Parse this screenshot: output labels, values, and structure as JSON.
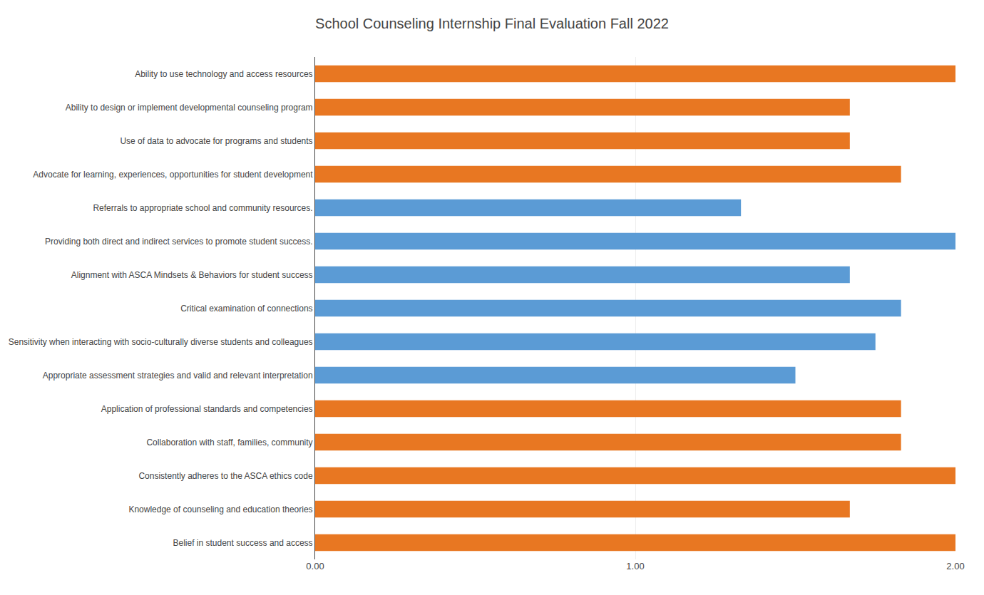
{
  "chart_data": {
    "type": "bar",
    "orientation": "horizontal",
    "title": "School Counseling Internship Final Evaluation Fall 2022",
    "categories": [
      "Ability to use technology and access resources",
      "Ability to design or implement developmental counseling program",
      "Use of data to advocate for programs and students",
      "Advocate for learning, experiences, opportunities for student development",
      "Referrals to appropriate school and community resources.",
      "Providing both direct and indirect services to promote student success.",
      "Alignment with ASCA Mindsets & Behaviors for student success",
      "Critical examination of connections",
      "Sensitivity when interacting with socio-culturally diverse students and colleagues",
      "Appropriate assessment strategies and valid and relevant interpretation",
      "Application of professional standards and competencies",
      "Collaboration with staff, families, community",
      "Consistently adheres to the ASCA ethics code",
      "Knowledge of counseling and education theories",
      "Belief in student success and access"
    ],
    "values": [
      2.0,
      1.67,
      1.67,
      1.83,
      1.33,
      2.0,
      1.67,
      1.83,
      1.75,
      1.5,
      1.83,
      1.83,
      2.0,
      1.67,
      2.0
    ],
    "colors": [
      "#E87722",
      "#E87722",
      "#E87722",
      "#E87722",
      "#5B9BD5",
      "#5B9BD5",
      "#5B9BD5",
      "#5B9BD5",
      "#5B9BD5",
      "#5B9BD5",
      "#E87722",
      "#E87722",
      "#E87722",
      "#E87722",
      "#E87722"
    ],
    "xlim": [
      0,
      2.0
    ],
    "xticks": [
      {
        "value": 0.0,
        "label": "0.00"
      },
      {
        "value": 1.0,
        "label": "1.00"
      },
      {
        "value": 2.0,
        "label": "2.00"
      }
    ],
    "grid": true
  }
}
